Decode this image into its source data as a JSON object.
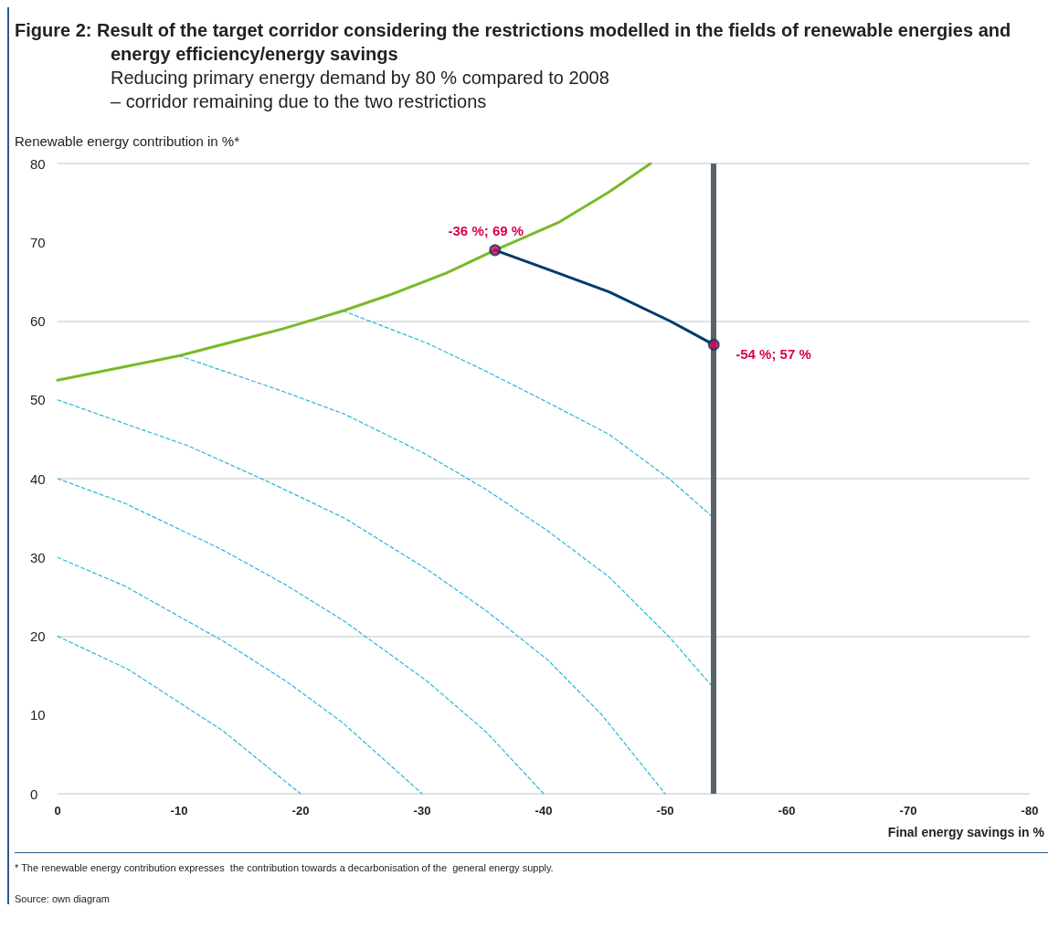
{
  "chart_data": {
    "type": "line",
    "title": "Figure 2:   Result of the target corridor considering the restrictions modelled in the fields of renewable energies and energy efficiency/energy savings",
    "subtitle": "Reducing primary energy demand by 80 % compared to 2008\n– corridor remaining due to the two restrictions",
    "xlabel": "Final energy savings in %",
    "ylabel": "Renewable energy contribution in %*",
    "xlim": [
      0,
      -80
    ],
    "xticks": [
      0,
      -10,
      -20,
      -30,
      -40,
      -50,
      -60,
      -70,
      -80
    ],
    "ylim": [
      0,
      80
    ],
    "yticks": [
      0,
      10,
      20,
      30,
      40,
      50,
      60,
      70,
      80
    ],
    "grid": "y",
    "series": [
      {
        "color": "#7ab929",
        "line_style": "solid",
        "marker": "none",
        "x": [
          0,
          -10,
          -18.5,
          -23.5,
          -27.3,
          -32,
          -36,
          -41.2,
          -45.4,
          -48.8
        ],
        "values": [
          52.5,
          55.6,
          59,
          61.3,
          63.3,
          66.1,
          69,
          72.5,
          76.4,
          80
        ]
      },
      {
        "color": "#003a6b",
        "line_style": "solid",
        "marker": "none",
        "x": [
          -36,
          -40.3,
          -45.4,
          -50.4,
          -54
        ],
        "values": [
          69,
          66.6,
          63.7,
          60,
          57
        ]
      },
      {
        "color": "#29b6d8",
        "line_style": "dashed",
        "marker": "none",
        "x": [
          -23.5,
          -30.4,
          -35.3,
          -40.3,
          -45.4,
          -50.4,
          -54
        ],
        "values": [
          61.3,
          57.2,
          53.6,
          49.7,
          45.6,
          39.9,
          35
        ]
      },
      {
        "color": "#29b6d8",
        "line_style": "dashed",
        "marker": "none",
        "x": [
          -10,
          -18.5,
          -23.6,
          -30.3,
          -35.3,
          -40.3,
          -45.4,
          -50.4,
          -54
        ],
        "values": [
          55.6,
          51.1,
          48.2,
          43.1,
          38.6,
          33.4,
          27.5,
          19.8,
          13.4
        ]
      },
      {
        "color": "#29b6d8",
        "line_style": "dashed",
        "marker": "none",
        "x": [
          0,
          -5.5,
          -10.7,
          -17.2,
          -23.6,
          -30.4,
          -35.3,
          -40.4,
          -44.8,
          -50
        ],
        "values": [
          50,
          47,
          44.2,
          39.7,
          35,
          28.5,
          23.2,
          16.9,
          10,
          0
        ]
      },
      {
        "color": "#29b6d8",
        "line_style": "dashed",
        "marker": "none",
        "x": [
          0,
          -5.5,
          -13.4,
          -18.8,
          -23.6,
          -30.4,
          -35.3,
          -40
        ],
        "values": [
          40,
          36.9,
          31.1,
          26.5,
          21.9,
          14.3,
          7.8,
          0
        ]
      },
      {
        "color": "#29b6d8",
        "line_style": "dashed",
        "marker": "none",
        "x": [
          0,
          -5.5,
          -13.6,
          -18.8,
          -23.4,
          -30
        ],
        "values": [
          30,
          26.4,
          19.4,
          14.3,
          9.1,
          0
        ]
      },
      {
        "color": "#29b6d8",
        "line_style": "dashed",
        "marker": "none",
        "x": [
          0,
          -5.8,
          -11.4,
          -13.6,
          -20
        ],
        "values": [
          20,
          15.8,
          10.2,
          8,
          0
        ]
      },
      {
        "type": "scatter",
        "color": "#d6004c",
        "marker": "circle",
        "x": [
          -36,
          -54
        ],
        "values": [
          69,
          57
        ]
      }
    ],
    "ref_lines": [
      {
        "axis": "x",
        "value": -54,
        "color": "#56636b"
      }
    ],
    "annotations": [
      {
        "text": "-36 %; 69 %",
        "x": -36,
        "y": 69
      },
      {
        "text": "-54 %; 57 %",
        "x": -54,
        "y": 57
      },
      "* The renewable energy contribution expresses  the contribution towards a decarbonisation of the  general energy supply.",
      "Source: own diagram"
    ]
  }
}
